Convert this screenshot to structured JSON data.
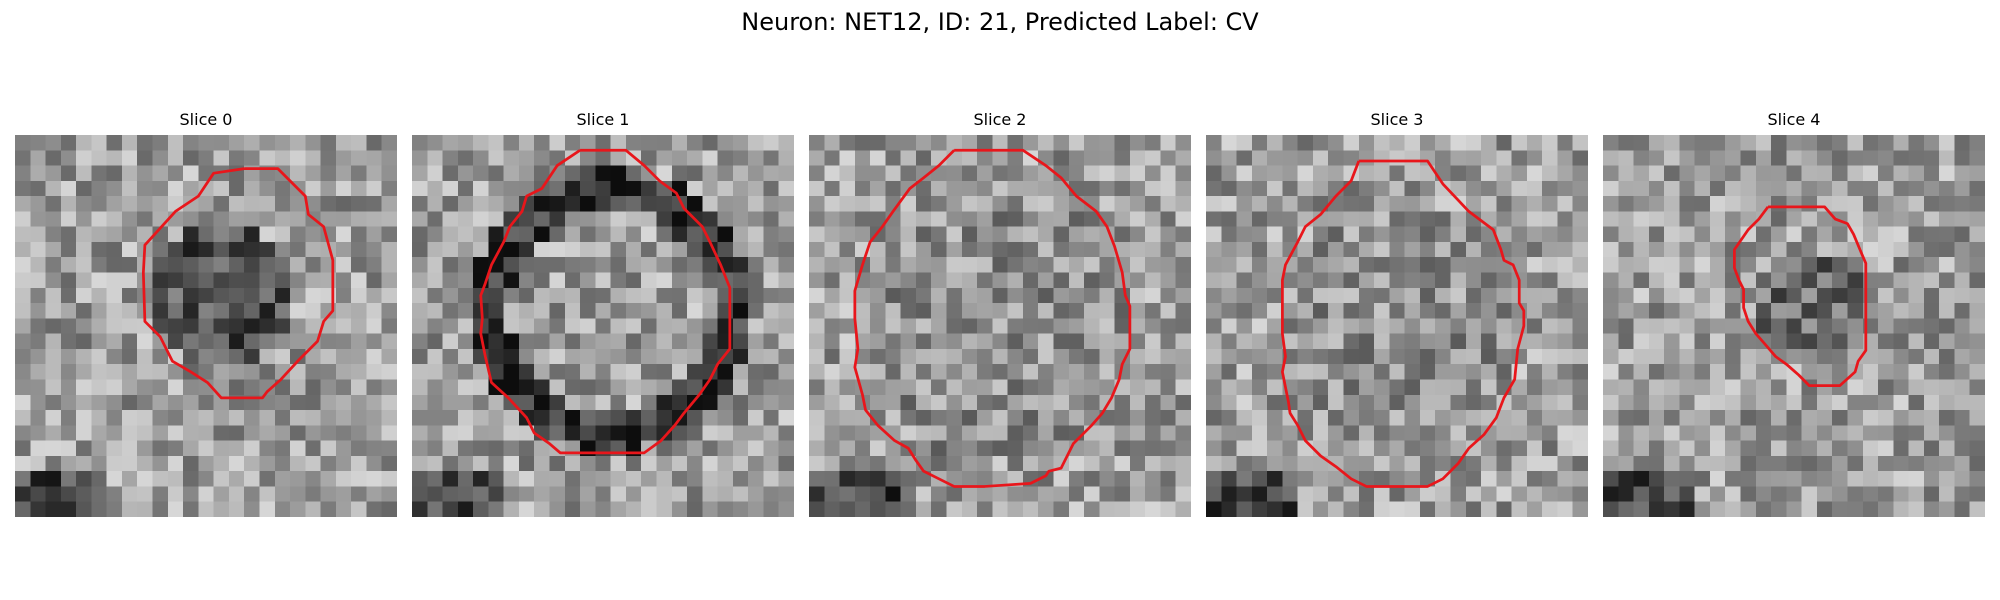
{
  "figure": {
    "title": "Neuron: NET12, ID: 21, Predicted Label: CV"
  },
  "panels": [
    {
      "title": "Slice 0",
      "contour": [
        [
          15,
          2.2
        ],
        [
          17.2,
          2.2
        ],
        [
          19,
          4
        ],
        [
          19.2,
          5.2
        ],
        [
          20.2,
          6
        ],
        [
          20.8,
          8.2
        ],
        [
          20.8,
          11.5
        ],
        [
          20.2,
          12.2
        ],
        [
          19.8,
          13.5
        ],
        [
          18.5,
          14.8
        ],
        [
          17.4,
          16
        ],
        [
          16.5,
          16.8
        ],
        [
          16.2,
          17.2
        ],
        [
          13.5,
          17.2
        ],
        [
          12.6,
          16.2
        ],
        [
          11.5,
          15.5
        ],
        [
          10.3,
          14.8
        ],
        [
          9.5,
          13.2
        ],
        [
          8.5,
          12.2
        ],
        [
          8.4,
          9
        ],
        [
          8.5,
          7.2
        ],
        [
          10.5,
          5
        ],
        [
          12,
          4
        ],
        [
          13,
          2.5
        ],
        [
          15,
          2.2
        ]
      ]
    },
    {
      "title": "Slice 1",
      "contour": [
        [
          11,
          1
        ],
        [
          14,
          1
        ],
        [
          15.2,
          2
        ],
        [
          16.2,
          3
        ],
        [
          17.3,
          3.8
        ],
        [
          17.8,
          4.8
        ],
        [
          19,
          6
        ],
        [
          19.5,
          7
        ],
        [
          20.2,
          8.5
        ],
        [
          20.8,
          10
        ],
        [
          20.8,
          14
        ],
        [
          20,
          15
        ],
        [
          19.5,
          16
        ],
        [
          18.8,
          17
        ],
        [
          17.8,
          18.2
        ],
        [
          17.2,
          19
        ],
        [
          16.3,
          20
        ],
        [
          15.2,
          20.8
        ],
        [
          9.7,
          20.8
        ],
        [
          9,
          20.2
        ],
        [
          8,
          19.5
        ],
        [
          7.5,
          18.5
        ],
        [
          6.3,
          17.2
        ],
        [
          5.2,
          16.2
        ],
        [
          4.8,
          14.5
        ],
        [
          4.5,
          13
        ],
        [
          4.6,
          12
        ],
        [
          4.5,
          10.5
        ],
        [
          4.8,
          9.7
        ],
        [
          5.2,
          8.5
        ],
        [
          6,
          7
        ],
        [
          6.4,
          6
        ],
        [
          7.2,
          5
        ],
        [
          7.5,
          4
        ],
        [
          8.5,
          3.5
        ],
        [
          9.5,
          2
        ],
        [
          11,
          1
        ]
      ]
    },
    {
      "title": "Slice 2",
      "contour": [
        [
          9.5,
          1
        ],
        [
          14,
          1
        ],
        [
          15.5,
          2
        ],
        [
          16.5,
          2.8
        ],
        [
          17.5,
          4
        ],
        [
          18.8,
          5
        ],
        [
          19.5,
          6
        ],
        [
          20,
          7.3
        ],
        [
          20.5,
          9
        ],
        [
          20.7,
          10.5
        ],
        [
          21,
          11.2
        ],
        [
          21,
          14
        ],
        [
          20.5,
          15
        ],
        [
          20.3,
          16
        ],
        [
          19.8,
          17.2
        ],
        [
          19.2,
          18.2
        ],
        [
          18.5,
          19
        ],
        [
          17.3,
          20.2
        ],
        [
          16.5,
          21.8
        ],
        [
          15.7,
          22
        ],
        [
          15.5,
          22.3
        ],
        [
          14.5,
          22.8
        ],
        [
          11.5,
          23
        ],
        [
          9.5,
          23
        ],
        [
          8.5,
          22.5
        ],
        [
          7.5,
          22
        ],
        [
          7,
          21.3
        ],
        [
          6.5,
          20.5
        ],
        [
          5.6,
          20
        ],
        [
          4.5,
          19
        ],
        [
          3.7,
          18
        ],
        [
          3.5,
          17
        ],
        [
          3,
          15.2
        ],
        [
          3.2,
          14
        ],
        [
          3,
          12
        ],
        [
          3,
          10.2
        ],
        [
          3.5,
          8.5
        ],
        [
          4,
          7
        ],
        [
          4.8,
          6
        ],
        [
          5.5,
          5
        ],
        [
          6.6,
          3.5
        ],
        [
          7.5,
          2.8
        ],
        [
          8.5,
          2
        ],
        [
          9.5,
          1
        ]
      ]
    },
    {
      "title": "Slice 3",
      "contour": [
        [
          10,
          1.7
        ],
        [
          14.5,
          1.7
        ],
        [
          15.5,
          3.2
        ],
        [
          17.2,
          5
        ],
        [
          18.8,
          6.2
        ],
        [
          19.3,
          7.5
        ],
        [
          19.5,
          8.2
        ],
        [
          20.1,
          8.5
        ],
        [
          20.5,
          9.5
        ],
        [
          20.5,
          11
        ],
        [
          20.8,
          11.5
        ],
        [
          20.8,
          12.5
        ],
        [
          20.4,
          14
        ],
        [
          20.2,
          16
        ],
        [
          19.5,
          17.2
        ],
        [
          19,
          18.5
        ],
        [
          18.2,
          19.6
        ],
        [
          17.2,
          20.5
        ],
        [
          16.5,
          21.5
        ],
        [
          15.5,
          22.5
        ],
        [
          14.5,
          23
        ],
        [
          10.5,
          23
        ],
        [
          9.5,
          22.5
        ],
        [
          8.5,
          21.7
        ],
        [
          7.5,
          21
        ],
        [
          6.5,
          20
        ],
        [
          6,
          19
        ],
        [
          5.5,
          18.2
        ],
        [
          5.4,
          17.5
        ],
        [
          5.2,
          16.5
        ],
        [
          5,
          15.5
        ],
        [
          5.2,
          14.5
        ],
        [
          5,
          13
        ],
        [
          5,
          11
        ],
        [
          5,
          9.5
        ],
        [
          5.2,
          8.5
        ],
        [
          6,
          7
        ],
        [
          6.5,
          6
        ],
        [
          7.5,
          5.2
        ],
        [
          8.5,
          4
        ],
        [
          9.5,
          3
        ],
        [
          10,
          1.7
        ]
      ]
    },
    {
      "title": "Slice 4",
      "contour": [
        [
          10.8,
          4.7
        ],
        [
          14.5,
          4.7
        ],
        [
          15.2,
          5.5
        ],
        [
          16,
          5.8
        ],
        [
          16.4,
          6.5
        ],
        [
          16.9,
          7.7
        ],
        [
          17.2,
          8.4
        ],
        [
          17.2,
          14.1
        ],
        [
          16.7,
          14.8
        ],
        [
          16.5,
          15.5
        ],
        [
          15.5,
          16.4
        ],
        [
          13.5,
          16.4
        ],
        [
          12.8,
          15.7
        ],
        [
          12,
          15
        ],
        [
          11.3,
          14.5
        ],
        [
          10.7,
          13.8
        ],
        [
          10,
          13
        ],
        [
          9.5,
          12.2
        ],
        [
          9.2,
          11.3
        ],
        [
          9.2,
          10.1
        ],
        [
          8.9,
          9.5
        ],
        [
          8.6,
          8.7
        ],
        [
          8.6,
          7.5
        ],
        [
          9.5,
          6.2
        ],
        [
          10.2,
          5.5
        ],
        [
          10.8,
          4.7
        ]
      ]
    }
  ]
}
